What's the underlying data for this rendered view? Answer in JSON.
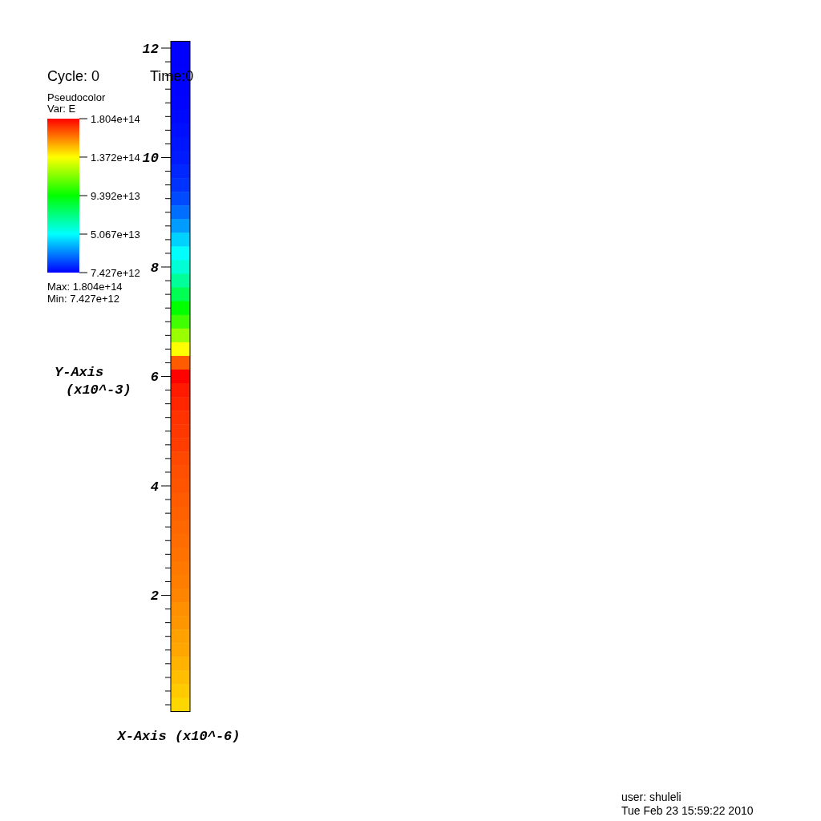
{
  "chart_data": {
    "type": "heatmap",
    "xlabel": "X-Axis (x10^-6)",
    "ylabel": "Y-Axis\n(x10^-3)",
    "legend_title": "Pseudocolor",
    "clabel": "Var: E",
    "annotations": [
      "Cycle: 0",
      "Time:0",
      "Max: 1.804e+14",
      "Min: 7.427e+12",
      "user: shuleli",
      "Tue Feb 23 15:59:22 2010"
    ],
    "categories": [
      null
    ],
    "y_categories": [
      "12",
      null,
      null,
      null,
      null,
      null,
      null,
      null,
      "10",
      null,
      null,
      null,
      null,
      null,
      null,
      null,
      "8",
      null,
      null,
      null,
      null,
      null,
      null,
      null,
      "6",
      null,
      null,
      null,
      null,
      null,
      null,
      null,
      "4",
      null,
      null,
      null,
      null,
      null,
      null,
      null,
      "2",
      null,
      null,
      null,
      null,
      null,
      null,
      null,
      null
    ],
    "cells": [
      [
        7400000000000.0
      ],
      [
        7500000000000.0
      ],
      [
        7600000000000.0
      ],
      [
        7800000000000.0
      ],
      [
        8000000000000.0
      ],
      [
        9000000000000.0
      ],
      [
        10000000000000.0
      ],
      [
        11000000000000.0
      ],
      [
        12000000000000.0
      ],
      [
        14000000000000.0
      ],
      [
        16000000000000.0
      ],
      [
        20000000000000.0
      ],
      [
        26000000000000.0
      ],
      [
        34000000000000.0
      ],
      [
        43000000000000.0
      ],
      [
        51000000000000.0
      ],
      [
        58000000000000.0
      ],
      [
        68000000000000.0
      ],
      [
        80000000000000.0
      ],
      [
        94000000000000.0
      ],
      [
        105000000000000.0
      ],
      [
        120000000000000.0
      ],
      [
        137000000000000.0
      ],
      [
        165000000000000.0
      ],
      [
        180000000000000.0
      ],
      [
        176000000000000.0
      ],
      [
        174000000000000.0
      ],
      [
        172000000000000.0
      ],
      [
        171000000000000.0
      ],
      [
        170000000000000.0
      ],
      [
        168000000000000.0
      ],
      [
        167000000000000.0
      ],
      [
        166000000000000.0
      ],
      [
        165000000000000.0
      ],
      [
        164000000000000.0
      ],
      [
        163000000000000.0
      ],
      [
        162000000000000.0
      ],
      [
        161000000000000.0
      ],
      [
        160000000000000.0
      ],
      [
        159000000000000.0
      ],
      [
        158000000000000.0
      ],
      [
        156000000000000.0
      ],
      [
        155000000000000.0
      ],
      [
        153000000000000.0
      ],
      [
        152000000000000.0
      ],
      [
        150000000000000.0
      ],
      [
        148000000000000.0
      ],
      [
        146000000000000.0
      ],
      [
        144000000000000.0
      ]
    ],
    "clim": [
      7427000000000.0,
      180400000000000.0
    ],
    "cticks": [
      {
        "value": 7427000000000.0,
        "label": "7.427e+12"
      },
      {
        "value": 50670000000000.0,
        "label": "5.067e+13"
      },
      {
        "value": 93920000000000.0,
        "label": "9.392e+13"
      },
      {
        "value": 137200000000000.0,
        "label": "1.372e+14"
      },
      {
        "value": 180400000000000.0,
        "label": "1.804e+14"
      }
    ],
    "tick_labels": "y"
  }
}
